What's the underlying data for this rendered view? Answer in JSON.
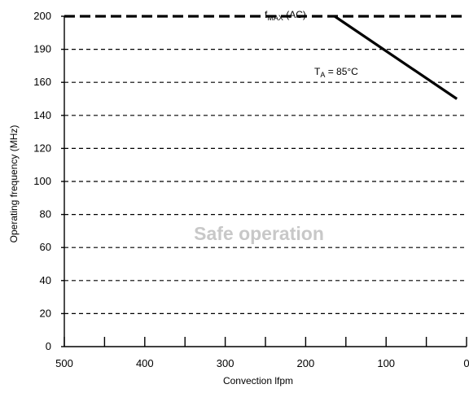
{
  "chart_data": {
    "type": "line",
    "title": "",
    "xlabel": "Convection lfpm",
    "ylabel": "Operating frequency (MHz)",
    "xlim": [
      500,
      0
    ],
    "x_ticks": [
      500,
      400,
      300,
      200,
      100,
      0
    ],
    "y_ticks": [
      0,
      20,
      40,
      60,
      80,
      100,
      120,
      140,
      160,
      190,
      200
    ],
    "grid": "horizontal-dashed",
    "series": [
      {
        "name": "T_A = 85°C",
        "x": [
          164,
          12
        ],
        "y": [
          200,
          150
        ]
      }
    ],
    "limit_line": {
      "label": "f_MAX (AC)",
      "y": 200
    },
    "annotations": {
      "series_label": {
        "main": "T",
        "sub": "A",
        "rest": " = 85°C"
      },
      "fmax_label": {
        "main": "f",
        "sub": "MAX",
        "rest": " (AC)"
      },
      "region_label": "Safe operation"
    }
  }
}
